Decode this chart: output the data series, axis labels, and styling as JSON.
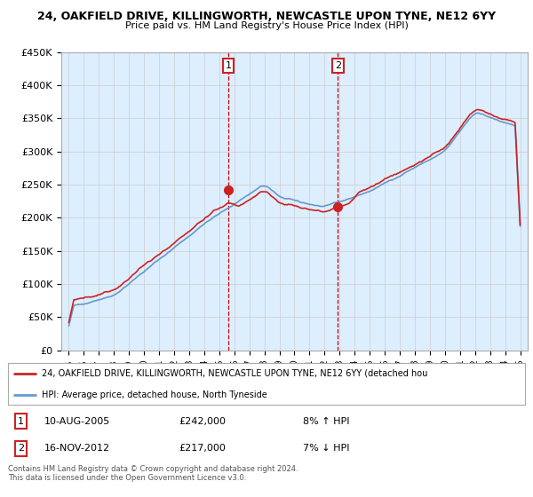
{
  "title1": "24, OAKFIELD DRIVE, KILLINGWORTH, NEWCASTLE UPON TYNE, NE12 6YY",
  "title2": "Price paid vs. HM Land Registry's House Price Index (HPI)",
  "legend_line1": "24, OAKFIELD DRIVE, KILLINGWORTH, NEWCASTLE UPON TYNE, NE12 6YY (detached hou",
  "legend_line2": "HPI: Average price, detached house, North Tyneside",
  "footnote": "Contains HM Land Registry data © Crown copyright and database right 2024.\nThis data is licensed under the Open Government Licence v3.0.",
  "transaction1_label": "1",
  "transaction1_date": "10-AUG-2005",
  "transaction1_price": "£242,000",
  "transaction1_hpi": "8% ↑ HPI",
  "transaction2_label": "2",
  "transaction2_date": "16-NOV-2012",
  "transaction2_price": "£217,000",
  "transaction2_hpi": "7% ↓ HPI",
  "sale1_year": 2005.6,
  "sale1_price": 242000,
  "sale2_year": 2012.88,
  "sale2_price": 217000,
  "vline1_year": 2005.6,
  "vline2_year": 2012.88,
  "ylim": [
    0,
    450000
  ],
  "xlim_start": 1994.5,
  "xlim_end": 2025.5,
  "hpi_color": "#6699cc",
  "price_color": "#cc2222",
  "background_chart": "#ddeeff",
  "background_fig": "#ffffff",
  "vline_color": "#cc0000",
  "grid_color": "#cccccc",
  "label_box_color": "#cc2222"
}
